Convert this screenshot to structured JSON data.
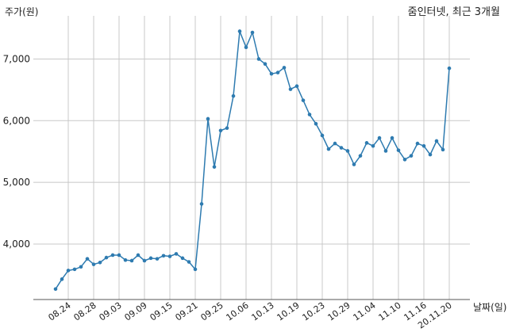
{
  "chart_data": {
    "type": "line",
    "title": "줌인터넷, 최근 3개월",
    "ylabel": "주가(원)",
    "xlabel": "날짜(일)",
    "ylim": [
      3100,
      7700
    ],
    "yticks": [
      4000,
      5000,
      6000,
      7000
    ],
    "ytick_labels": [
      "4,000",
      "5,000",
      "6,000",
      "7,000"
    ],
    "xtick_labels": [
      "08.24",
      "08.28",
      "09.03",
      "09.09",
      "09.15",
      "09.21",
      "09.25",
      "10.06",
      "10.13",
      "10.19",
      "10.23",
      "10.29",
      "11.04",
      "11.10",
      "11.16",
      "20.11.20"
    ],
    "xtick_index": [
      2,
      6,
      10,
      14,
      18,
      22,
      26,
      30,
      34,
      38,
      42,
      46,
      50,
      54,
      58,
      62
    ],
    "grid": true,
    "color": "#2e7bb0",
    "series": [
      {
        "values": [
          3270,
          3430,
          3570,
          3590,
          3630,
          3760,
          3670,
          3700,
          3780,
          3820,
          3820,
          3740,
          3730,
          3820,
          3730,
          3770,
          3760,
          3810,
          3800,
          3840,
          3770,
          3710,
          3590,
          4650,
          6030,
          5250,
          5840,
          5880,
          6400,
          7450,
          7190,
          7430,
          7000,
          6920,
          6760,
          6780,
          6860,
          6510,
          6560,
          6330,
          6100,
          5950,
          5760,
          5540,
          5630,
          5560,
          5510,
          5290,
          5430,
          5640,
          5590,
          5720,
          5510,
          5720,
          5520,
          5370,
          5430,
          5630,
          5590,
          5450,
          5670,
          5530,
          6850
        ]
      }
    ]
  }
}
